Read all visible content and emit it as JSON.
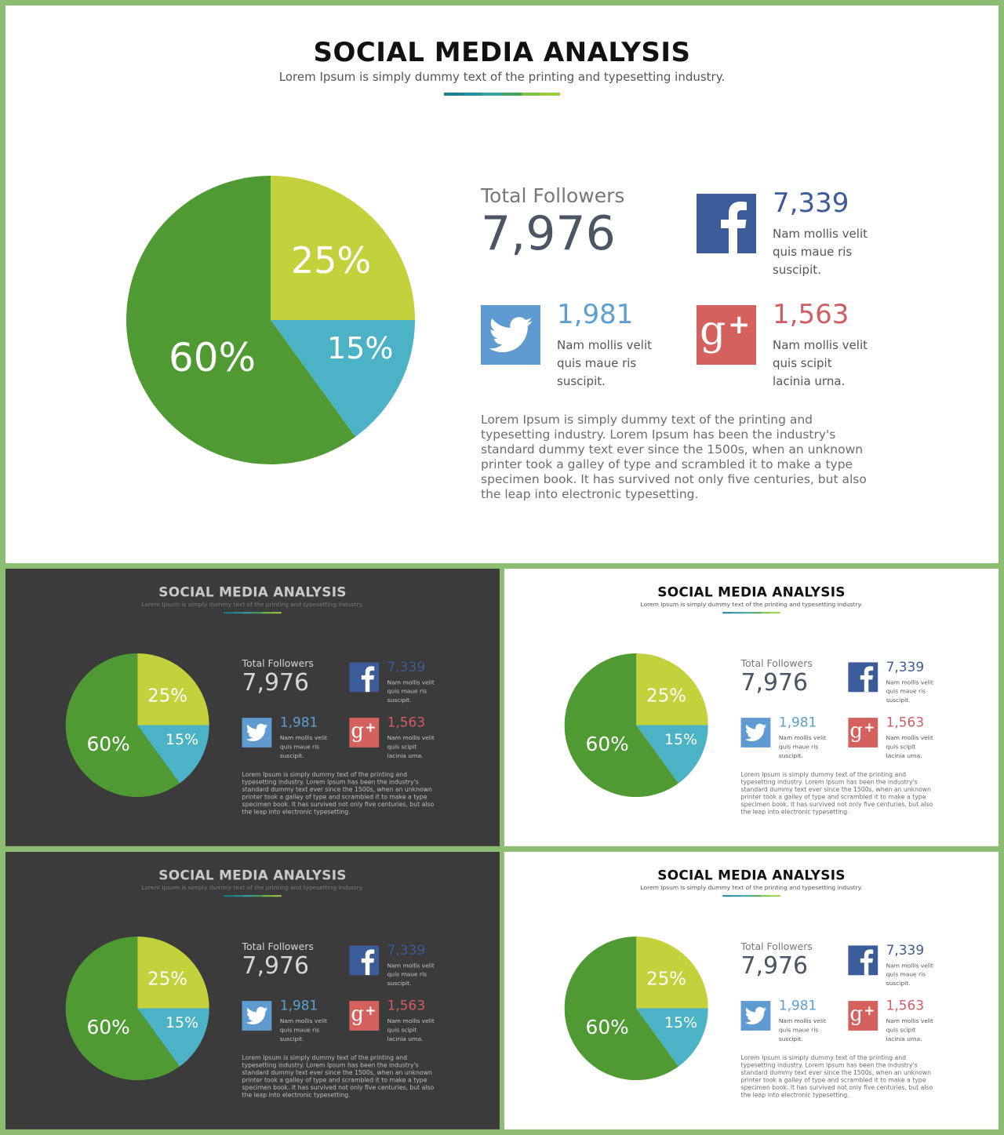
{
  "slide": {
    "title": "SOCIAL MEDIA ANALYSIS",
    "subtitle": "Lorem Ipsum is simply dummy text of the printing and typesetting industry.",
    "divider_colors": [
      "#1e7f8f",
      "#2a8fa3",
      "#38a39a",
      "#4aa35c",
      "#7fc04a",
      "#9acd3c"
    ],
    "total_followers_label": "Total Followers",
    "total_followers_value": "7,976",
    "stats": {
      "facebook": {
        "icon": "facebook-icon",
        "value": "7,339",
        "desc": [
          "Nam mollis velit",
          "quis maue ris",
          "suscipit."
        ],
        "color": "#3b5b99"
      },
      "twitter": {
        "icon": "twitter-icon",
        "value": "1,981",
        "desc": [
          "Nam mollis velit",
          "quis maue ris",
          "suscipit."
        ],
        "color": "#5f9bd0"
      },
      "googleplus": {
        "icon": "google-plus-icon",
        "value": "1,563",
        "desc": [
          "Nam mollis velit",
          "quis scipit",
          "lacinia urna."
        ],
        "color": "#d5615f"
      }
    },
    "body": "Lorem Ipsum is simply dummy text of the printing and typesetting industry. Lorem Ipsum has been the industry's standard dummy text ever since the 1500s, when an unknown printer took a galley of type and scrambled it to make a type specimen book. It has survived not only five centuries, but also the leap into electronic typesetting."
  },
  "chart_data": {
    "type": "pie",
    "slices": [
      {
        "label": "25%",
        "value": 25,
        "color": "#c3d13d"
      },
      {
        "label": "15%",
        "value": 15,
        "color": "#4cb3c6"
      },
      {
        "label": "60%",
        "value": 60,
        "color": "#4f9a32"
      }
    ]
  },
  "variants": {
    "main": "light",
    "thumb_1": "dark",
    "thumb_2": "light",
    "thumb_3": "dark",
    "thumb_4": "light"
  }
}
